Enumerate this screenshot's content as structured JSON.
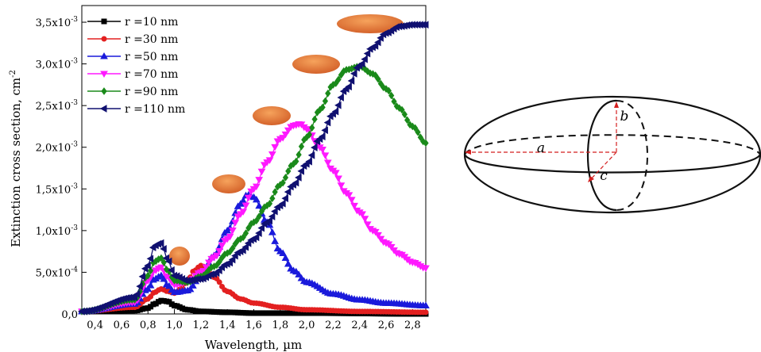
{
  "chart_data": {
    "type": "line",
    "xlabel": "Wavelength, µm",
    "ylabel": "Extinction cross section, cm",
    "ylabel_sup": "-2",
    "xlim": [
      0.3,
      2.9
    ],
    "ylim": [
      0,
      0.0037
    ],
    "x_ticks": [
      0.4,
      0.6,
      0.8,
      1.0,
      1.2,
      1.4,
      1.6,
      1.8,
      2.0,
      2.2,
      2.4,
      2.6,
      2.8
    ],
    "x_tick_labels": [
      "0,4",
      "0,6",
      "0,8",
      "1,0",
      "1,2",
      "1,4",
      "1,6",
      "1,8",
      "2,0",
      "2,2",
      "2,4",
      "2,6",
      "2,8"
    ],
    "y_ticks": [
      {
        "value": 0.0,
        "base": "0,0",
        "exp": ""
      },
      {
        "value": 0.0005,
        "base": "5,0x10",
        "exp": "-4"
      },
      {
        "value": 0.001,
        "base": "1,0x10",
        "exp": "-3"
      },
      {
        "value": 0.0015,
        "base": "1,5x10",
        "exp": "-3"
      },
      {
        "value": 0.002,
        "base": "2,0x10",
        "exp": "-3"
      },
      {
        "value": 0.0025,
        "base": "2,5x10",
        "exp": "-3"
      },
      {
        "value": 0.003,
        "base": "3,0x10",
        "exp": "-3"
      },
      {
        "value": 0.0035,
        "base": "3,5x10",
        "exp": "-3"
      }
    ],
    "legend_position": "top-left",
    "series": [
      {
        "name": "r =10 nm",
        "color": "#000000",
        "marker": "square",
        "x": [
          0.3,
          0.7,
          0.8,
          0.85,
          0.9,
          0.95,
          1.0,
          1.1,
          1.2,
          1.4,
          1.6,
          2.0,
          2.9
        ],
        "y": [
          3e-05,
          4e-05,
          7e-05,
          0.00012,
          0.00016,
          0.00015,
          0.0001,
          5e-05,
          3e-05,
          2e-05,
          1e-05,
          1e-05,
          0.0
        ]
      },
      {
        "name": "r =30 nm",
        "color": "#e32020",
        "marker": "circle",
        "x": [
          0.3,
          0.7,
          0.8,
          0.85,
          0.9,
          0.95,
          1.0,
          1.05,
          1.1,
          1.15,
          1.2,
          1.25,
          1.3,
          1.4,
          1.5,
          1.6,
          1.8,
          2.0,
          2.4,
          2.9
        ],
        "y": [
          3e-05,
          8e-05,
          0.00018,
          0.00026,
          0.0003,
          0.00027,
          0.00025,
          0.0003,
          0.0004,
          0.00052,
          0.00058,
          0.00055,
          0.00044,
          0.00027,
          0.00018,
          0.00013,
          8e-05,
          5e-05,
          3e-05,
          2e-05
        ]
      },
      {
        "name": "r =50 nm",
        "color": "#1a1adb",
        "marker": "triangle-up",
        "x": [
          0.3,
          0.7,
          0.8,
          0.85,
          0.9,
          0.95,
          1.0,
          1.1,
          1.2,
          1.3,
          1.4,
          1.5,
          1.55,
          1.6,
          1.7,
          1.8,
          1.9,
          2.0,
          2.2,
          2.4,
          2.6,
          2.9
        ],
        "y": [
          3e-05,
          0.00012,
          0.0003,
          0.00042,
          0.00046,
          0.00034,
          0.00026,
          0.00028,
          0.00045,
          0.0007,
          0.001,
          0.00132,
          0.00143,
          0.0014,
          0.0011,
          0.00075,
          0.00052,
          0.00038,
          0.00024,
          0.00017,
          0.00013,
          0.0001
        ]
      },
      {
        "name": "r =70 nm",
        "color": "#ff19ff",
        "marker": "triangle-down",
        "x": [
          0.3,
          0.7,
          0.8,
          0.85,
          0.9,
          0.95,
          1.0,
          1.1,
          1.2,
          1.3,
          1.4,
          1.5,
          1.6,
          1.7,
          1.8,
          1.9,
          1.95,
          2.0,
          2.1,
          2.2,
          2.3,
          2.4,
          2.5,
          2.6,
          2.7,
          2.8,
          2.9
        ],
        "y": [
          3e-05,
          0.00014,
          0.0004,
          0.00052,
          0.00056,
          0.00044,
          0.00035,
          0.00038,
          0.0005,
          0.00068,
          0.0009,
          0.0012,
          0.0015,
          0.00182,
          0.0021,
          0.00226,
          0.00228,
          0.00222,
          0.002,
          0.00172,
          0.00145,
          0.00122,
          0.001,
          0.00085,
          0.00072,
          0.00062,
          0.00055
        ]
      },
      {
        "name": "r =90 nm",
        "color": "#1a8a1a",
        "marker": "diamond",
        "x": [
          0.3,
          0.7,
          0.8,
          0.85,
          0.9,
          0.95,
          1.0,
          1.1,
          1.2,
          1.3,
          1.4,
          1.5,
          1.6,
          1.7,
          1.8,
          1.9,
          2.0,
          2.1,
          2.2,
          2.3,
          2.4,
          2.5,
          2.6,
          2.7,
          2.8,
          2.9
        ],
        "y": [
          3e-05,
          0.00017,
          0.00046,
          0.00063,
          0.00067,
          0.00052,
          0.0004,
          0.00038,
          0.00045,
          0.00057,
          0.00073,
          0.0009,
          0.0011,
          0.0013,
          0.00155,
          0.0018,
          0.00212,
          0.00245,
          0.00275,
          0.00293,
          0.00297,
          0.00288,
          0.0027,
          0.00247,
          0.00225,
          0.00205
        ]
      },
      {
        "name": "r =110 nm",
        "color": "#101070",
        "marker": "triangle-left",
        "x": [
          0.3,
          0.7,
          0.8,
          0.85,
          0.9,
          0.95,
          1.0,
          1.1,
          1.2,
          1.3,
          1.4,
          1.5,
          1.6,
          1.7,
          1.8,
          1.9,
          2.0,
          2.1,
          2.2,
          2.3,
          2.4,
          2.5,
          2.6,
          2.7,
          2.8,
          2.9
        ],
        "y": [
          3e-05,
          0.0002,
          0.00058,
          0.00082,
          0.00085,
          0.00065,
          0.00046,
          0.0004,
          0.00042,
          0.00048,
          0.0006,
          0.00075,
          0.0009,
          0.0011,
          0.0013,
          0.00155,
          0.0018,
          0.0021,
          0.0024,
          0.0027,
          0.00298,
          0.0032,
          0.00337,
          0.00345,
          0.00347,
          0.00347
        ]
      }
    ]
  },
  "diagram": {
    "labels": {
      "a": "a",
      "b": "b",
      "c": "c"
    },
    "colors": {
      "outline": "#111111",
      "axes": "#d41f1f"
    }
  },
  "particle_color": "#f08a3c"
}
